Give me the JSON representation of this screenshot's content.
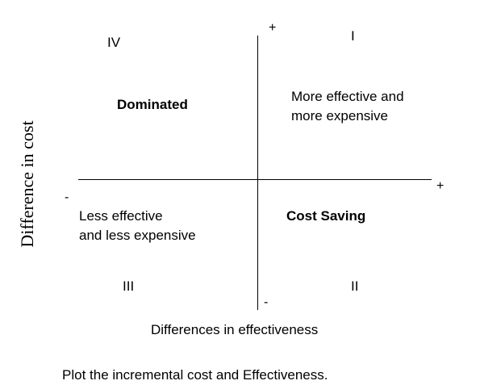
{
  "axes": {
    "y_plus": "+",
    "y_minus": "-",
    "x_plus": "+",
    "x_minus": "-",
    "x_label": "Differences in effectiveness",
    "y_label": "Difference in cost"
  },
  "quadrants": {
    "q1": {
      "numeral": "I",
      "label_line1": "More effective and",
      "label_line2": "more expensive"
    },
    "q2": {
      "numeral": "II",
      "label": "Cost Saving"
    },
    "q3": {
      "numeral": "III",
      "label_line1": "Less effective",
      "label_line2": "and less expensive"
    },
    "q4": {
      "numeral": "IV",
      "label": "Dominated"
    }
  },
  "caption": "Plot the incremental cost and Effectiveness."
}
